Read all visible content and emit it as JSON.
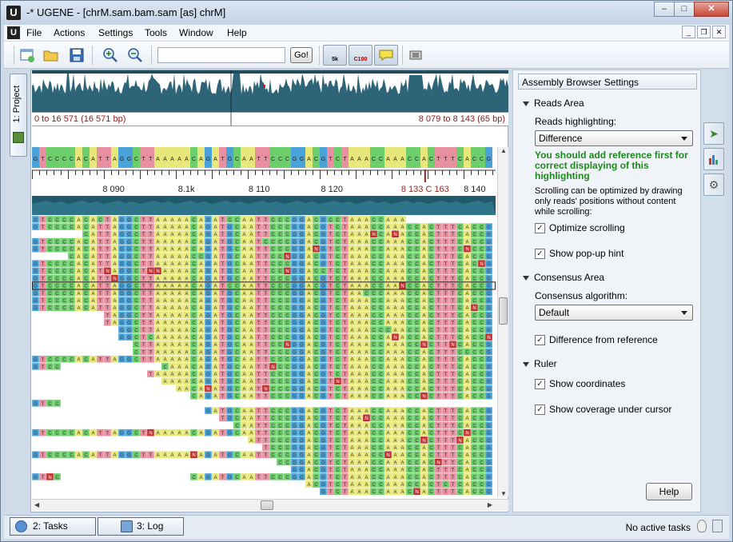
{
  "window": {
    "title": "-* UGENE - [chrM.sam.bam.sam [as] chrM]",
    "app_icon": "U"
  },
  "menu": {
    "items": [
      "File",
      "Actions",
      "Settings",
      "Tools",
      "Window",
      "Help"
    ]
  },
  "toolbar": {
    "search_value": "",
    "go_label": "Go!",
    "toggle_5k": "5k",
    "toggle_c100": "C100"
  },
  "left_tab": {
    "label": "1: Project"
  },
  "overview": {
    "range_left": "0 to 16 571 (16 571 bp)",
    "range_right": "8 079 to 8 143 (65 bp)"
  },
  "ruler": {
    "labels": [
      {
        "text": "8 090",
        "pos": 0.176
      },
      {
        "text": "8.1k",
        "pos": 0.333
      },
      {
        "text": "8 110",
        "pos": 0.49
      },
      {
        "text": "8 120",
        "pos": 0.647
      },
      {
        "text": "8 133 C 163",
        "pos": 0.848
      },
      {
        "text": "8 140",
        "pos": 0.955
      }
    ]
  },
  "reference": {
    "sequence": "GTCCCCACATTAGGCTTAAAAACAGATGCAATTCCCGGACGTCTAAACCAAACCACTTTCACCGCTA"
  },
  "settings": {
    "title": "Assembly Browser Settings",
    "reads_area": "Reads Area",
    "reads_highlighting_label": "Reads highlighting:",
    "reads_highlighting_value": "Difference",
    "warning": "You should add reference  first for correct displaying of this highlighting",
    "note": "Scrolling can be optimized by drawing only reads' positions without content while scrolling:",
    "optimize_scrolling": "Optimize scrolling",
    "show_popup_hint": "Show pop-up hint",
    "consensus_area": "Consensus Area",
    "consensus_algorithm_label": "Consensus algorithm:",
    "consensus_algorithm_value": "Default",
    "difference_from_reference": "Difference from reference",
    "ruler": "Ruler",
    "show_coordinates": "Show coordinates",
    "show_coverage": "Show coverage under cursor",
    "help": "Help"
  },
  "statusbar": {
    "tasks": "2: Tasks",
    "log": "3: Log",
    "status": "No active tasks"
  },
  "colors": {
    "A": "#e8e87a",
    "C": "#6ccf6c",
    "G": "#4aa3d8",
    "T": "#e88fa0",
    "N": "#c03030"
  }
}
